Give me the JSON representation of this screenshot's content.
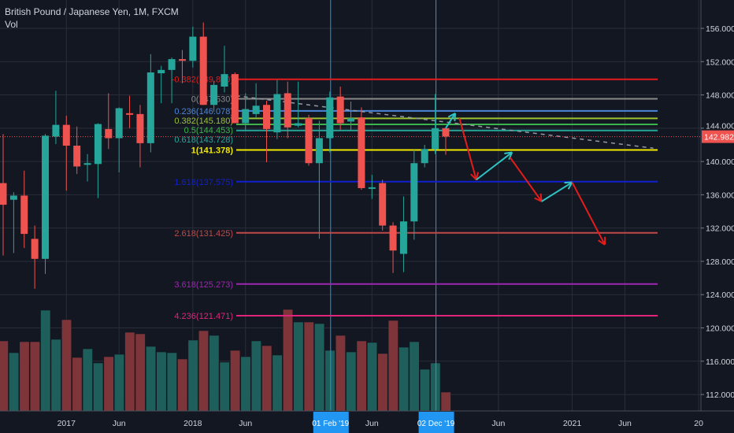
{
  "header": {
    "title": "British Pound / Japanese Yen, 1M, FXCM",
    "volume_label": "Vol"
  },
  "colors": {
    "up": "#26a69a",
    "down": "#ef5350",
    "vol_up": "#1e5f5b",
    "vol_down": "#7d3539",
    "background": "#131722",
    "grid": "#2a2e39",
    "marker_line": "#2196f3",
    "arrow_up": "#2ec4c4",
    "arrow_down": "#e51c1c"
  },
  "chart_data": {
    "type": "candlestick",
    "title": "British Pound / Japanese Yen, 1M, FXCM",
    "ylim": [
      110.5,
      158.5
    ],
    "y_ticks": [
      "156.000",
      "152.000",
      "148.000",
      "144.000",
      "140.000",
      "136.000",
      "132.000",
      "128.000",
      "124.000",
      "120.000",
      "116.000",
      "112.000"
    ],
    "y_tick_values": [
      156,
      152,
      148,
      144,
      140,
      136,
      132,
      128,
      124,
      120,
      116,
      112
    ],
    "last_price": "142.982",
    "last_price_value": 142.982,
    "x_ticks": [
      {
        "label": "2017",
        "month_index": 6
      },
      {
        "label": "Jun",
        "month_index": 11
      },
      {
        "label": "2018",
        "month_index": 18
      },
      {
        "label": "Jun",
        "month_index": 23
      },
      {
        "label": "Jun",
        "month_index": 35
      },
      {
        "label": "Jun",
        "month_index": 47
      },
      {
        "label": "2021",
        "month_index": 54
      },
      {
        "label": "Jun",
        "month_index": 59
      },
      {
        "label": "20",
        "month_index": 66
      }
    ],
    "highlighted_dates": [
      {
        "label": "01 Feb '19",
        "month_index": 31
      },
      {
        "label": "02 Dec '19",
        "month_index": 41
      }
    ],
    "candles": [
      [
        137.4,
        143.3,
        128.7,
        134.8,
        89
      ],
      [
        135.4,
        136.3,
        129.0,
        135.9,
        74
      ],
      [
        135.9,
        138.9,
        129.6,
        131.3,
        88
      ],
      [
        130.7,
        132.3,
        124.7,
        128.3,
        88
      ],
      [
        128.3,
        143.3,
        126.5,
        143.1,
        128
      ],
      [
        143.0,
        148.5,
        142.1,
        144.4,
        91
      ],
      [
        144.4,
        145.5,
        136.5,
        141.9,
        116
      ],
      [
        141.9,
        144.2,
        138.5,
        139.4,
        68
      ],
      [
        139.6,
        140.9,
        137.6,
        139.8,
        79
      ],
      [
        139.7,
        144.6,
        135.6,
        144.5,
        61
      ],
      [
        143.9,
        148.2,
        141.5,
        142.8,
        69
      ],
      [
        142.8,
        146.5,
        138.7,
        146.4,
        72
      ],
      [
        145.8,
        147.9,
        144.0,
        145.7,
        100
      ],
      [
        145.7,
        146.8,
        139.3,
        142.2,
        98
      ],
      [
        142.2,
        152.9,
        141.1,
        150.7,
        82
      ],
      [
        150.6,
        151.5,
        147.0,
        151.0,
        75
      ],
      [
        151.0,
        152.5,
        147.0,
        152.3,
        74
      ],
      [
        152.3,
        153.4,
        149.4,
        152.1,
        66
      ],
      [
        152.1,
        156.2,
        151.3,
        155.0,
        90
      ],
      [
        155.0,
        156.7,
        146.8,
        146.8,
        102
      ],
      [
        146.8,
        149.7,
        146.0,
        149.2,
        96
      ],
      [
        149.0,
        153.9,
        148.3,
        150.5,
        62
      ],
      [
        150.5,
        150.7,
        144.6,
        144.6,
        77
      ],
      [
        144.6,
        148.2,
        143.8,
        146.3,
        69
      ],
      [
        145.7,
        149.4,
        145.2,
        146.7,
        89
      ],
      [
        146.8,
        147.3,
        139.9,
        143.9,
        83
      ],
      [
        143.5,
        149.8,
        142.7,
        148.1,
        71
      ],
      [
        148.2,
        149.6,
        142.8,
        144.1,
        129
      ],
      [
        144.3,
        149.6,
        144.1,
        144.6,
        113
      ],
      [
        145.2,
        145.6,
        139.5,
        139.8,
        113
      ],
      [
        139.8,
        144.9,
        130.7,
        142.8,
        111
      ],
      [
        142.8,
        148.4,
        141.1,
        147.7,
        77
      ],
      [
        147.8,
        149.0,
        143.8,
        144.6,
        96
      ],
      [
        144.8,
        147.2,
        143.8,
        145.2,
        75
      ],
      [
        145.3,
        146.5,
        136.6,
        136.8,
        89
      ],
      [
        136.8,
        138.4,
        135.5,
        136.9,
        87
      ],
      [
        137.4,
        137.8,
        131.7,
        132.3,
        73
      ],
      [
        132.3,
        132.7,
        126.6,
        129.3,
        115
      ],
      [
        128.9,
        135.8,
        126.7,
        132.8,
        81
      ],
      [
        132.8,
        141.4,
        130.6,
        139.8,
        88
      ],
      [
        139.8,
        142.0,
        139.3,
        141.5,
        53
      ],
      [
        141.5,
        148.1,
        140.9,
        144.0,
        61
      ],
      [
        144.0,
        144.0,
        140.8,
        143.0,
        24
      ]
    ],
    "candle_fields": [
      "open",
      "high",
      "low",
      "close",
      "volume_relative"
    ],
    "fib_levels": [
      {
        "label": "-0.382(149.880)",
        "price": 149.88,
        "color": "#e41b1b"
      },
      {
        "label": "0(147.530)",
        "price": 147.53,
        "color": "#8a8a8a"
      },
      {
        "label": "0.236(146.078)",
        "price": 146.078,
        "color": "#4a86d8"
      },
      {
        "label": "0.382(145.180)",
        "price": 145.18,
        "color": "#9bc232"
      },
      {
        "label": "0.5(144.453)",
        "price": 144.453,
        "color": "#3cb44b"
      },
      {
        "label": "0.618(143.728)",
        "price": 143.728,
        "color": "#26a69a"
      },
      {
        "label": "1(141.378)",
        "price": 141.378,
        "color": "#f0e800"
      },
      {
        "label": "1.618(137.575)",
        "price": 137.575,
        "color": "#1020d0"
      },
      {
        "label": "2.618(131.425)",
        "price": 131.425,
        "color": "#c04848"
      },
      {
        "label": "3.618(125.273)",
        "price": 125.273,
        "color": "#9c27b0"
      },
      {
        "label": "4.236(121.471)",
        "price": 121.471,
        "color": "#e0247a"
      }
    ],
    "trend_line": [
      [
        22.1,
        147.9
      ],
      [
        61.7,
        141.6
      ]
    ],
    "arrows": [
      {
        "dir": "up",
        "from": [
          42.0,
          144.0
        ],
        "to": [
          42.9,
          145.8
        ]
      },
      {
        "dir": "down",
        "from": [
          43.3,
          145.2
        ],
        "to": [
          44.9,
          137.8
        ]
      },
      {
        "dir": "up",
        "from": [
          44.9,
          137.8
        ],
        "to": [
          48.3,
          141.1
        ]
      },
      {
        "dir": "down",
        "from": [
          48.1,
          140.5
        ],
        "to": [
          51.1,
          135.2
        ]
      },
      {
        "dir": "up",
        "from": [
          51.1,
          135.2
        ],
        "to": [
          54.0,
          137.5
        ]
      },
      {
        "dir": "down",
        "from": [
          54.0,
          137.5
        ],
        "to": [
          57.1,
          130.0
        ]
      }
    ]
  }
}
